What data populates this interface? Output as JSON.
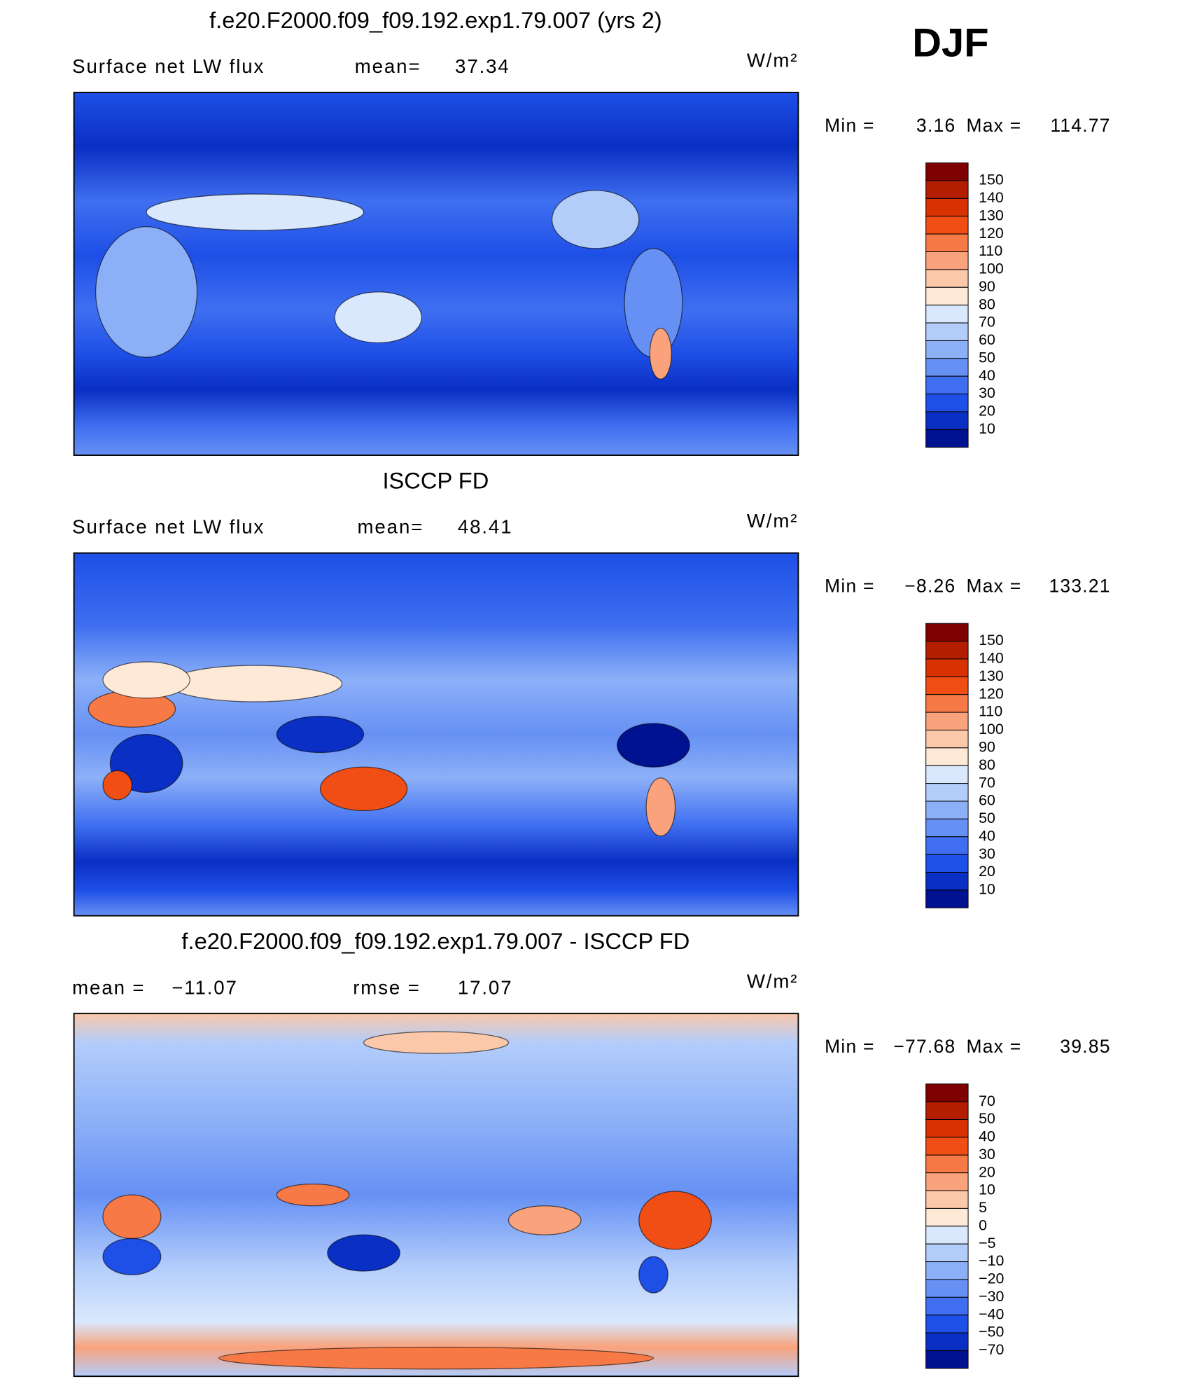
{
  "corner_label": "DJF",
  "panels": [
    {
      "title": "f.e20.F2000.f09_f09.192.exp1.79.007 (yrs 2)",
      "header": [
        "Surface net LW flux",
        "mean=",
        "37.34"
      ],
      "units": "W/m²",
      "min_label": "Min =",
      "min_value": "3.16",
      "max_label": "Max =",
      "max_value": "114.77",
      "colorbar": {
        "colors": [
          "#7f0000",
          "#b41e00",
          "#d83200",
          "#f04e14",
          "#f77a46",
          "#f9a27c",
          "#fbc8aa",
          "#fde9d6",
          "#d9e8fd",
          "#b3cdfb",
          "#8cb0f8",
          "#6690f4",
          "#3f6ff0",
          "#1e4fe6",
          "#0a2fc4",
          "#00128f"
        ],
        "levels": [
          150,
          140,
          130,
          120,
          110,
          100,
          90,
          80,
          70,
          60,
          50,
          40,
          30,
          20,
          10
        ]
      }
    },
    {
      "title": "ISCCP FD",
      "header": [
        "Surface net LW flux",
        "mean=",
        "48.41"
      ],
      "units": "W/m²",
      "min_label": "Min =",
      "min_value": "−8.26",
      "max_label": "Max =",
      "max_value": "133.21",
      "colorbar": {
        "colors": [
          "#7f0000",
          "#b41e00",
          "#d83200",
          "#f04e14",
          "#f77a46",
          "#f9a27c",
          "#fbc8aa",
          "#fde9d6",
          "#d9e8fd",
          "#b3cdfb",
          "#8cb0f8",
          "#6690f4",
          "#3f6ff0",
          "#1e4fe6",
          "#0a2fc4",
          "#00128f"
        ],
        "levels": [
          150,
          140,
          130,
          120,
          110,
          100,
          90,
          80,
          70,
          60,
          50,
          40,
          30,
          20,
          10
        ]
      }
    },
    {
      "title": "f.e20.F2000.f09_f09.192.exp1.79.007 - ISCCP FD",
      "header": [
        "mean =",
        "−11.07",
        "rmse =",
        "17.07"
      ],
      "units": "W/m²",
      "min_label": "Min =",
      "min_value": "−77.68",
      "max_label": "Max =",
      "max_value": "39.85",
      "colorbar": {
        "colors": [
          "#7f0000",
          "#b41e00",
          "#d83200",
          "#f04e14",
          "#f77a46",
          "#f9a27c",
          "#fbc8aa",
          "#fde9d6",
          "#d9e8fd",
          "#b3cdfb",
          "#8cb0f8",
          "#6690f4",
          "#3f6ff0",
          "#1e4fe6",
          "#0a2fc4",
          "#00128f"
        ],
        "levels": [
          70,
          50,
          40,
          30,
          20,
          10,
          5,
          0,
          {
            "value": -5,
            "label": "−5"
          },
          {
            "value": -10,
            "label": "−10"
          },
          {
            "value": -20,
            "label": "−20"
          },
          {
            "value": -30,
            "label": "−30"
          },
          {
            "value": -40,
            "label": "−40"
          },
          {
            "value": -50,
            "label": "−50"
          },
          {
            "value": -70,
            "label": "−70"
          }
        ]
      }
    }
  ]
}
